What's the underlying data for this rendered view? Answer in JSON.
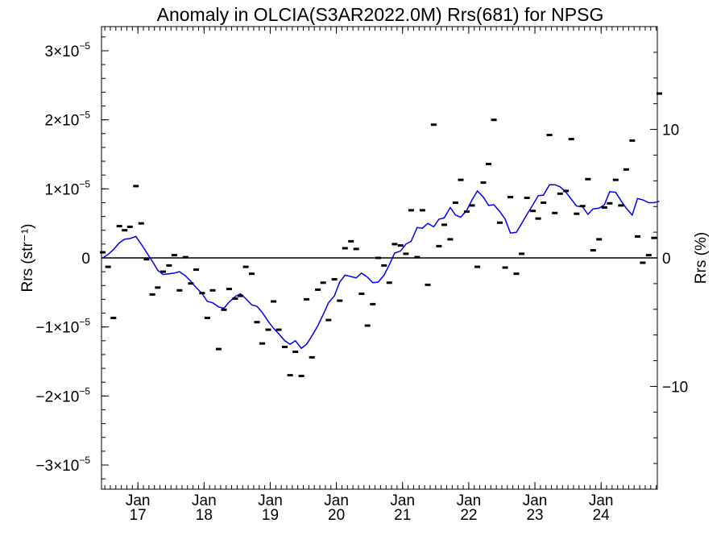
{
  "chart_data": {
    "type": "scatter",
    "title": "Anomaly in OLCIA(S3AR2022.0M) Rrs(681) for NPSG",
    "ylabel_left": "Rrs (str⁻¹)",
    "ylabel_right": "Rrs (%)",
    "x_range": [
      2016.45,
      2024.85
    ],
    "y_range": [
      -3.35e-05,
      3.35e-05
    ],
    "y2_range": [
      -18.0,
      18.0
    ],
    "grid": false,
    "legend": "none",
    "colors": {
      "points": "#000000",
      "smoothed_line": "#0000ee",
      "zero_line": "#000000"
    },
    "y_ticks": [
      {
        "value": 3e-05,
        "mant": "3",
        "exp": "−5"
      },
      {
        "value": 2e-05,
        "mant": "2",
        "exp": "−5"
      },
      {
        "value": 1e-05,
        "mant": "1",
        "exp": "−5"
      },
      {
        "value": 0,
        "mant": "0",
        "exp": ""
      },
      {
        "value": -1e-05,
        "mant": "−1",
        "exp": "−5"
      },
      {
        "value": -2e-05,
        "mant": "−2",
        "exp": "−5"
      },
      {
        "value": -3e-05,
        "mant": "−3",
        "exp": "−5"
      }
    ],
    "y2_ticks": [
      {
        "value": 10,
        "label": "10"
      },
      {
        "value": 0,
        "label": "0"
      },
      {
        "value": -10,
        "label": "−10"
      }
    ],
    "x_ticks": [
      {
        "value": 2017.0,
        "line1": "Jan",
        "line2": "17"
      },
      {
        "value": 2018.0,
        "line1": "Jan",
        "line2": "18"
      },
      {
        "value": 2019.0,
        "line1": "Jan",
        "line2": "19"
      },
      {
        "value": 2020.0,
        "line1": "Jan",
        "line2": "20"
      },
      {
        "value": 2021.0,
        "line1": "Jan",
        "line2": "21"
      },
      {
        "value": 2022.0,
        "line1": "Jan",
        "line2": "22"
      },
      {
        "value": 2023.0,
        "line1": "Jan",
        "line2": "23"
      },
      {
        "value": 2024.0,
        "line1": "Jan",
        "line2": "24"
      }
    ],
    "points": {
      "x": [
        2016.47,
        2016.55,
        2016.63,
        2016.72,
        2016.8,
        2016.88,
        2016.97,
        2017.05,
        2017.13,
        2017.22,
        2017.3,
        2017.38,
        2017.47,
        2017.55,
        2017.63,
        2017.72,
        2017.8,
        2017.88,
        2017.97,
        2018.05,
        2018.13,
        2018.22,
        2018.3,
        2018.38,
        2018.47,
        2018.55,
        2018.63,
        2018.72,
        2018.8,
        2018.88,
        2018.97,
        2019.05,
        2019.13,
        2019.22,
        2019.3,
        2019.38,
        2019.47,
        2019.55,
        2019.63,
        2019.72,
        2019.8,
        2019.88,
        2019.97,
        2020.05,
        2020.13,
        2020.22,
        2020.3,
        2020.38,
        2020.47,
        2020.55,
        2020.63,
        2020.72,
        2020.8,
        2020.88,
        2020.97,
        2021.05,
        2021.13,
        2021.22,
        2021.3,
        2021.38,
        2021.47,
        2021.55,
        2021.63,
        2021.72,
        2021.8,
        2021.88,
        2021.97,
        2022.05,
        2022.13,
        2022.22,
        2022.3,
        2022.38,
        2022.47,
        2022.55,
        2022.63,
        2022.72,
        2022.8,
        2022.88,
        2022.97,
        2023.05,
        2023.13,
        2023.22,
        2023.3,
        2023.38,
        2023.47,
        2023.55,
        2023.63,
        2023.72,
        2023.8,
        2023.88,
        2023.97,
        2024.05,
        2024.13,
        2024.22,
        2024.3,
        2024.38,
        2024.47,
        2024.55,
        2024.63,
        2024.72,
        2024.8,
        2024.88
      ],
      "y": [
        8e-07,
        -1.3e-06,
        -8.7e-06,
        4.6e-06,
        4e-06,
        4.5e-06,
        1.04e-05,
        5e-06,
        -2e-07,
        -5.3e-06,
        -4.3e-06,
        -2e-06,
        -1.1e-06,
        4e-07,
        -4.7e-06,
        1e-07,
        -3.7e-06,
        -1.7e-06,
        -5.1e-06,
        -8.7e-06,
        -4.7e-06,
        -1.32e-05,
        -7.5e-06,
        -4.5e-06,
        -5.9e-06,
        -5.5e-06,
        -1.3e-06,
        -2.3e-06,
        -9.3e-06,
        -1.24e-05,
        -1.04e-05,
        -6.3e-06,
        -1.04e-05,
        -1.29e-05,
        -1.7e-05,
        -1.36e-05,
        -1.71e-05,
        -6e-06,
        -1.44e-05,
        -4.6e-06,
        -3.6e-06,
        -9e-06,
        -3.1e-06,
        -6.2e-06,
        1.4e-06,
        2.4e-06,
        1.3e-06,
        -5.2e-06,
        -9.8e-06,
        -6.7e-06,
        0.0,
        -1.1e-06,
        -3.6e-06,
        2e-06,
        1.8e-06,
        6e-07,
        6.9e-06,
        1e-07,
        6.9e-06,
        -3.9e-06,
        1.93e-05,
        1.7e-06,
        4.8e-06,
        2.7e-06,
        8e-06,
        1.13e-05,
        6.7e-06,
        7.6e-06,
        -1.3e-06,
        1.09e-05,
        1.36e-05,
        2e-05,
        5.1e-06,
        -1.4e-06,
        8.8e-06,
        -2.3e-06,
        6e-07,
        8.7e-06,
        6.8e-06,
        5.7e-06,
        8e-06,
        1.78e-05,
        6.5e-06,
        9.3e-06,
        9.7e-06,
        1.72e-05,
        6.4e-06,
        7.5e-06,
        1.14e-05,
        1.1e-06,
        2.7e-06,
        7.3e-06,
        7.9e-06,
        1.13e-05,
        7.6e-06,
        1.28e-05,
        1.7e-05,
        3.1e-06,
        -7e-07,
        4e-07,
        2.9e-06,
        2.38e-05
      ]
    },
    "smoothed": {
      "x": [
        2016.47,
        2016.55,
        2016.63,
        2016.72,
        2016.8,
        2016.88,
        2016.97,
        2017.05,
        2017.13,
        2017.22,
        2017.3,
        2017.38,
        2017.47,
        2017.55,
        2017.63,
        2017.72,
        2017.8,
        2017.88,
        2017.97,
        2018.05,
        2018.13,
        2018.22,
        2018.3,
        2018.38,
        2018.47,
        2018.55,
        2018.63,
        2018.72,
        2018.8,
        2018.88,
        2018.97,
        2019.05,
        2019.13,
        2019.22,
        2019.3,
        2019.38,
        2019.47,
        2019.55,
        2019.63,
        2019.72,
        2019.8,
        2019.88,
        2019.97,
        2020.05,
        2020.13,
        2020.22,
        2020.3,
        2020.38,
        2020.47,
        2020.55,
        2020.63,
        2020.72,
        2020.8,
        2020.88,
        2020.97,
        2021.05,
        2021.13,
        2021.22,
        2021.3,
        2021.38,
        2021.47,
        2021.55,
        2021.63,
        2021.72,
        2021.8,
        2021.88,
        2021.97,
        2022.05,
        2022.13,
        2022.22,
        2022.3,
        2022.38,
        2022.47,
        2022.55,
        2022.63,
        2022.72,
        2022.8,
        2022.88,
        2022.97,
        2023.05,
        2023.13,
        2023.22,
        2023.3,
        2023.38,
        2023.47,
        2023.55,
        2023.63,
        2023.72,
        2023.8,
        2023.88,
        2023.97,
        2024.05,
        2024.13,
        2024.22,
        2024.3,
        2024.38,
        2024.47,
        2024.55,
        2024.63,
        2024.72,
        2024.8,
        2024.88
      ],
      "y": [
        0.0,
        5e-07,
        1.2e-06,
        2.2e-06,
        2.7e-06,
        2.8e-06,
        3.1e-06,
        2e-06,
        8e-07,
        -5e-07,
        -1.8e-06,
        -2.4e-06,
        -2.3e-06,
        -2.2e-06,
        -2e-06,
        -2.6e-06,
        -3.4e-06,
        -4.3e-06,
        -5.2e-06,
        -6.3e-06,
        -6.5e-06,
        -7.1e-06,
        -7.3e-06,
        -6.4e-06,
        -5.6e-06,
        -5.2e-06,
        -5.9e-06,
        -6.8e-06,
        -7e-06,
        -7.9e-06,
        -9.2e-06,
        -1.02e-05,
        -1.1e-05,
        -1.2e-05,
        -1.25e-05,
        -1.2e-05,
        -1.31e-05,
        -1.25e-05,
        -1.13e-05,
        -9.8e-06,
        -8.2e-06,
        -6.5e-06,
        -5.5e-06,
        -3.5e-06,
        -2.5e-06,
        -2.7e-06,
        -2.9e-06,
        -2.2e-06,
        -2.8e-06,
        -3.6e-06,
        -3.5e-06,
        -2.5e-06,
        -1e-06,
        7e-07,
        1e-06,
        2e-06,
        2.4e-06,
        4.4e-06,
        4.3e-06,
        5e-06,
        4.5e-06,
        5.6e-06,
        5.8e-06,
        7.3e-06,
        6.2e-06,
        5.9e-06,
        6.9e-06,
        8.4e-06,
        9.7e-06,
        8.8e-06,
        7.6e-06,
        7.7e-06,
        6.7e-06,
        5.6e-06,
        3.6e-06,
        3.7e-06,
        5e-06,
        6.3e-06,
        7.7e-06,
        9e-06,
        9.1e-06,
        1.06e-05,
        1.06e-05,
        1.03e-05,
        9.5e-06,
        8.5e-06,
        7.5e-06,
        7.4e-06,
        6.3e-06,
        7.1e-06,
        7.2e-06,
        7.7e-06,
        9.6e-06,
        9.5e-06,
        8.3e-06,
        7.2e-06,
        6.2e-06,
        8.6e-06,
        8.4e-06,
        8e-06,
        8e-06,
        8.2e-06
      ]
    }
  }
}
